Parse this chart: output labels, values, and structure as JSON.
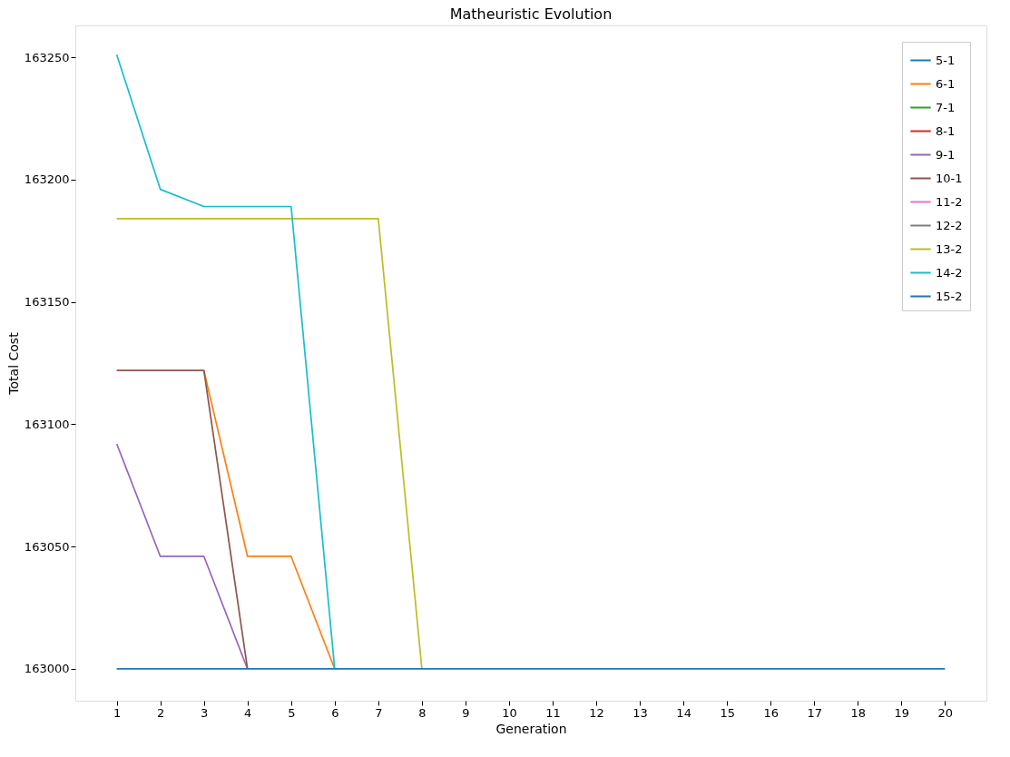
{
  "chart_data": {
    "type": "line",
    "title": "Matheuristic Evolution",
    "xlabel": "Generation",
    "ylabel": "Total Cost",
    "x": [
      1,
      2,
      3,
      4,
      5,
      6,
      7,
      8,
      9,
      10,
      11,
      12,
      13,
      14,
      15,
      16,
      17,
      18,
      19,
      20
    ],
    "xlim": [
      0.05,
      20.95
    ],
    "xticks": [
      1,
      2,
      3,
      4,
      5,
      6,
      7,
      8,
      9,
      10,
      11,
      12,
      13,
      14,
      15,
      16,
      17,
      18,
      19,
      20
    ],
    "ylim": [
      162987,
      163263
    ],
    "yticks": [
      163000,
      163050,
      163100,
      163150,
      163200,
      163250
    ],
    "grid": false,
    "legend": "top right",
    "marker": "none",
    "line_style": "solid",
    "series": [
      {
        "name": "5-1",
        "color": "#1f77b4",
        "values": [
          null,
          null,
          null,
          null,
          null,
          null,
          null,
          null,
          null,
          null,
          null,
          null,
          null,
          null,
          null,
          null,
          null,
          null,
          null,
          null
        ]
      },
      {
        "name": "6-1",
        "color": "#ff7f0e",
        "values": [
          null,
          null,
          163122,
          163046,
          163046,
          163000,
          null,
          null,
          null,
          null,
          null,
          null,
          null,
          null,
          null,
          null,
          null,
          null,
          null,
          null
        ]
      },
      {
        "name": "7-1",
        "color": "#2ca02c",
        "values": [
          null,
          null,
          null,
          null,
          null,
          null,
          null,
          null,
          null,
          null,
          null,
          null,
          null,
          null,
          null,
          null,
          null,
          null,
          null,
          null
        ]
      },
      {
        "name": "8-1",
        "color": "#d62728",
        "values": [
          null,
          null,
          null,
          null,
          null,
          null,
          null,
          null,
          null,
          null,
          null,
          null,
          null,
          null,
          null,
          null,
          null,
          null,
          null,
          null
        ]
      },
      {
        "name": "9-1",
        "color": "#9467bd",
        "values": [
          163092,
          163046,
          163046,
          163000,
          null,
          null,
          null,
          null,
          null,
          null,
          null,
          null,
          null,
          null,
          null,
          null,
          null,
          null,
          null,
          null
        ]
      },
      {
        "name": "10-1",
        "color": "#8c564b",
        "values": [
          163122,
          163122,
          163122,
          163000,
          null,
          null,
          null,
          null,
          null,
          null,
          null,
          null,
          null,
          null,
          null,
          null,
          null,
          null,
          null,
          null
        ]
      },
      {
        "name": "11-2",
        "color": "#e377c2",
        "values": [
          null,
          null,
          null,
          null,
          null,
          null,
          null,
          null,
          null,
          null,
          null,
          null,
          null,
          null,
          null,
          null,
          null,
          null,
          null,
          null
        ]
      },
      {
        "name": "12-2",
        "color": "#7f7f7f",
        "values": [
          null,
          null,
          null,
          null,
          null,
          null,
          null,
          null,
          null,
          null,
          null,
          null,
          null,
          null,
          null,
          null,
          null,
          null,
          null,
          null
        ]
      },
      {
        "name": "13-2",
        "color": "#bcbd22",
        "values": [
          163184,
          163184,
          163184,
          163184,
          163184,
          163184,
          163184,
          163000,
          null,
          null,
          null,
          null,
          null,
          null,
          null,
          null,
          null,
          null,
          null,
          null
        ]
      },
      {
        "name": "14-2",
        "color": "#17becf",
        "values": [
          163251,
          163196,
          163189,
          163189,
          163189,
          163000,
          null,
          null,
          null,
          null,
          null,
          null,
          null,
          null,
          null,
          null,
          null,
          null,
          null,
          null
        ]
      },
      {
        "name": "15-2",
        "color": "#1f77b4",
        "values": [
          163000,
          163000,
          163000,
          163000,
          163000,
          163000,
          163000,
          163000,
          163000,
          163000,
          163000,
          163000,
          163000,
          163000,
          163000,
          163000,
          163000,
          163000,
          163000,
          163000
        ]
      }
    ]
  }
}
